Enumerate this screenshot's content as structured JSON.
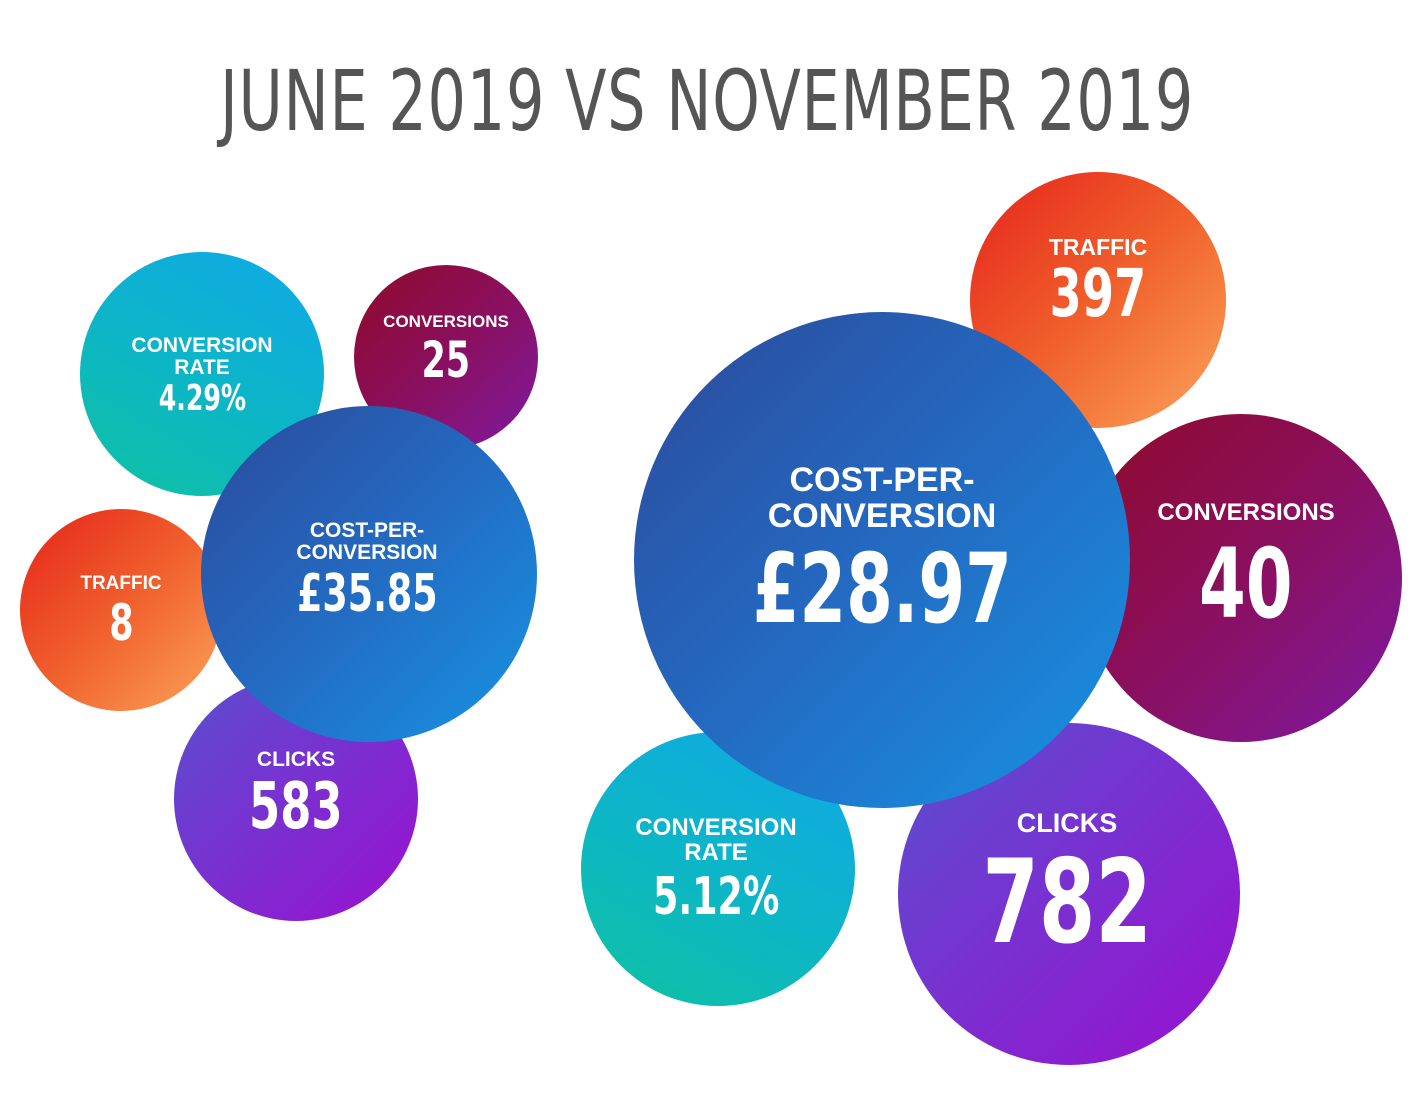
{
  "title": "JUNE 2019 VS NOVEMBER 2019",
  "june": {
    "conversion_rate": {
      "label_line1": "CONVERSION",
      "label_line2": "RATE",
      "value": "4.29%"
    },
    "conversions": {
      "label": "CONVERSIONS",
      "value": "25"
    },
    "traffic": {
      "label": "TRAFFIC",
      "value": "8"
    },
    "cost_per_conversion": {
      "label_line1": "COST-PER-",
      "label_line2": "CONVERSION",
      "value": "£35.85"
    },
    "clicks": {
      "label": "CLICKS",
      "value": "583"
    }
  },
  "november": {
    "traffic": {
      "label": "TRAFFIC",
      "value": "397"
    },
    "cost_per_conversion": {
      "label_line1": "COST-PER-",
      "label_line2": "CONVERSION",
      "value": "£28.97"
    },
    "conversions": {
      "label": "CONVERSIONS",
      "value": "40"
    },
    "conversion_rate": {
      "label_line1": "CONVERSION",
      "label_line2": "RATE",
      "value": "5.12%"
    },
    "clicks": {
      "label": "CLICKS",
      "value": "782"
    }
  },
  "colors": {
    "title": "#555555",
    "cost_per_conversion": "#2467be",
    "traffic": "#f0602c",
    "conversions": "#8a0f5e",
    "conversion_rate": "#0db5c8",
    "clicks": "#7a2fd0"
  }
}
